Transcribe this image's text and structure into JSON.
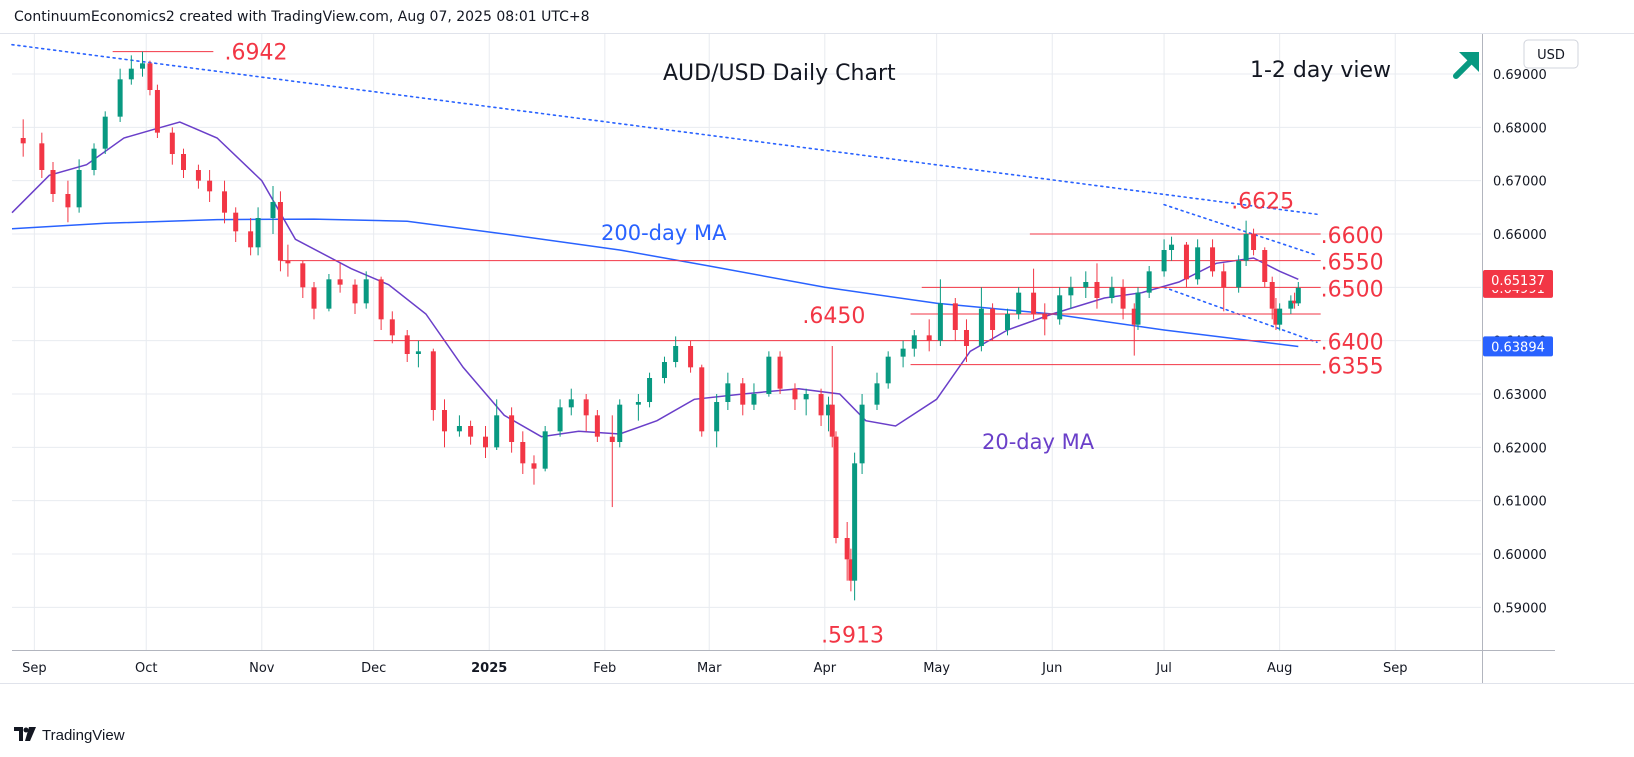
{
  "header": {
    "text": "ContinuumEconomics2 created with TradingView.com, Aug 07, 2025 08:01 UTC+8"
  },
  "brand": {
    "name": "TradingView"
  },
  "chart_data": {
    "type": "candlestick",
    "title": "AUD/USD Daily Chart",
    "view_label": "1-2 day view",
    "view_arrow": "up-right-arrow",
    "currency": "USD",
    "y_range": [
      0.582,
      0.6975
    ],
    "y_ticks": [
      "0.69000",
      "0.68000",
      "0.67000",
      "0.66000",
      "0.65000",
      "0.64000",
      "0.63000",
      "0.62000",
      "0.61000",
      "0.60000",
      "0.59000"
    ],
    "x_ticks": [
      "Sep",
      "Oct",
      "Nov",
      "Dec",
      "2025",
      "Feb",
      "Mar",
      "Apr",
      "May",
      "Jun",
      "Jul",
      "Aug",
      "Sep"
    ],
    "x_tick_dates": [
      "2024-09-01",
      "2024-10-01",
      "2024-11-01",
      "2024-12-01",
      "2025-01-01",
      "2025-02-01",
      "2025-03-01",
      "2025-04-01",
      "2025-05-01",
      "2025-06-01",
      "2025-07-01",
      "2025-08-01",
      "2025-09-01"
    ],
    "x_date_range": [
      "2024-08-26",
      "2025-09-24"
    ],
    "candles": [
      [
        "2024-08-29",
        0.678,
        0.6815,
        0.6745,
        0.677
      ],
      [
        "2024-09-03",
        0.677,
        0.679,
        0.6705,
        0.672
      ],
      [
        "2024-09-06",
        0.672,
        0.6735,
        0.666,
        0.6675
      ],
      [
        "2024-09-10",
        0.6675,
        0.67,
        0.6622,
        0.665
      ],
      [
        "2024-09-13",
        0.665,
        0.674,
        0.664,
        0.672
      ],
      [
        "2024-09-17",
        0.672,
        0.677,
        0.671,
        0.676
      ],
      [
        "2024-09-20",
        0.676,
        0.683,
        0.675,
        0.682
      ],
      [
        "2024-09-24",
        0.682,
        0.691,
        0.681,
        0.689
      ],
      [
        "2024-09-27",
        0.689,
        0.6935,
        0.688,
        0.691
      ],
      [
        "2024-09-30",
        0.691,
        0.6942,
        0.6895,
        0.692
      ],
      [
        "2024-10-02",
        0.692,
        0.6925,
        0.686,
        0.687
      ],
      [
        "2024-10-04",
        0.687,
        0.688,
        0.678,
        0.679
      ],
      [
        "2024-10-08",
        0.679,
        0.68,
        0.673,
        0.675
      ],
      [
        "2024-10-11",
        0.675,
        0.676,
        0.6705,
        0.672
      ],
      [
        "2024-10-15",
        0.672,
        0.673,
        0.6685,
        0.67
      ],
      [
        "2024-10-18",
        0.67,
        0.672,
        0.666,
        0.668
      ],
      [
        "2024-10-22",
        0.668,
        0.67,
        0.662,
        0.664
      ],
      [
        "2024-10-25",
        0.664,
        0.665,
        0.6585,
        0.6605
      ],
      [
        "2024-10-29",
        0.6605,
        0.663,
        0.656,
        0.6575
      ],
      [
        "2024-10-31",
        0.6575,
        0.665,
        0.656,
        0.663
      ],
      [
        "2024-11-04",
        0.663,
        0.669,
        0.66,
        0.666
      ],
      [
        "2024-11-06",
        0.666,
        0.668,
        0.653,
        0.655
      ],
      [
        "2024-11-08",
        0.655,
        0.658,
        0.652,
        0.6545
      ],
      [
        "2024-11-12",
        0.6545,
        0.655,
        0.648,
        0.65
      ],
      [
        "2024-11-15",
        0.65,
        0.651,
        0.644,
        0.646
      ],
      [
        "2024-11-19",
        0.646,
        0.6525,
        0.6455,
        0.6515
      ],
      [
        "2024-11-22",
        0.6515,
        0.6545,
        0.649,
        0.6505
      ],
      [
        "2024-11-26",
        0.6505,
        0.6515,
        0.645,
        0.647
      ],
      [
        "2024-11-29",
        0.647,
        0.653,
        0.646,
        0.6515
      ],
      [
        "2024-12-03",
        0.6515,
        0.652,
        0.642,
        0.644
      ],
      [
        "2024-12-06",
        0.644,
        0.6455,
        0.6395,
        0.641
      ],
      [
        "2024-12-10",
        0.641,
        0.642,
        0.636,
        0.6375
      ],
      [
        "2024-12-13",
        0.6375,
        0.64,
        0.635,
        0.638
      ],
      [
        "2024-12-17",
        0.638,
        0.6385,
        0.625,
        0.627
      ],
      [
        "2024-12-20",
        0.627,
        0.629,
        0.62,
        0.623
      ],
      [
        "2024-12-24",
        0.623,
        0.626,
        0.622,
        0.624
      ],
      [
        "2024-12-27",
        0.624,
        0.625,
        0.6205,
        0.622
      ],
      [
        "2024-12-31",
        0.622,
        0.624,
        0.618,
        0.62
      ],
      [
        "2025-01-03",
        0.62,
        0.629,
        0.6195,
        0.626
      ],
      [
        "2025-01-07",
        0.626,
        0.6275,
        0.619,
        0.621
      ],
      [
        "2025-01-10",
        0.621,
        0.623,
        0.615,
        0.617
      ],
      [
        "2025-01-13",
        0.617,
        0.6185,
        0.613,
        0.616
      ],
      [
        "2025-01-16",
        0.616,
        0.624,
        0.6155,
        0.623
      ],
      [
        "2025-01-20",
        0.623,
        0.629,
        0.622,
        0.6275
      ],
      [
        "2025-01-23",
        0.6275,
        0.631,
        0.626,
        0.629
      ],
      [
        "2025-01-27",
        0.629,
        0.63,
        0.623,
        0.626
      ],
      [
        "2025-01-30",
        0.626,
        0.627,
        0.621,
        0.622
      ],
      [
        "2025-02-03",
        0.622,
        0.626,
        0.6088,
        0.621
      ],
      [
        "2025-02-05",
        0.621,
        0.629,
        0.62,
        0.628
      ],
      [
        "2025-02-10",
        0.628,
        0.63,
        0.625,
        0.6285
      ],
      [
        "2025-02-13",
        0.6285,
        0.634,
        0.6275,
        0.633
      ],
      [
        "2025-02-17",
        0.633,
        0.637,
        0.632,
        0.636
      ],
      [
        "2025-02-20",
        0.636,
        0.6408,
        0.635,
        0.639
      ],
      [
        "2025-02-24",
        0.639,
        0.64,
        0.634,
        0.635
      ],
      [
        "2025-02-27",
        0.635,
        0.6355,
        0.622,
        0.623
      ],
      [
        "2025-03-03",
        0.623,
        0.63,
        0.62,
        0.6285
      ],
      [
        "2025-03-06",
        0.6285,
        0.634,
        0.627,
        0.632
      ],
      [
        "2025-03-10",
        0.632,
        0.633,
        0.626,
        0.628
      ],
      [
        "2025-03-13",
        0.628,
        0.632,
        0.627,
        0.63
      ],
      [
        "2025-03-17",
        0.63,
        0.638,
        0.6295,
        0.637
      ],
      [
        "2025-03-20",
        0.637,
        0.638,
        0.63,
        0.631
      ],
      [
        "2025-03-24",
        0.631,
        0.632,
        0.627,
        0.629
      ],
      [
        "2025-03-27",
        0.629,
        0.631,
        0.626,
        0.63
      ],
      [
        "2025-03-31",
        0.63,
        0.631,
        0.624,
        0.626
      ],
      [
        "2025-04-02",
        0.626,
        0.6295,
        0.623,
        0.628
      ],
      [
        "2025-04-03",
        0.628,
        0.639,
        0.62,
        0.622
      ],
      [
        "2025-04-04",
        0.622,
        0.623,
        0.602,
        0.603
      ],
      [
        "2025-04-07",
        0.603,
        0.606,
        0.595,
        0.599
      ],
      [
        "2025-04-08",
        0.599,
        0.601,
        0.593,
        0.595
      ],
      [
        "2025-04-09",
        0.595,
        0.619,
        0.5913,
        0.617
      ],
      [
        "2025-04-11",
        0.617,
        0.63,
        0.615,
        0.628
      ],
      [
        "2025-04-15",
        0.628,
        0.634,
        0.627,
        0.632
      ],
      [
        "2025-04-18",
        0.632,
        0.638,
        0.631,
        0.637
      ],
      [
        "2025-04-22",
        0.637,
        0.64,
        0.635,
        0.6385
      ],
      [
        "2025-04-25",
        0.6385,
        0.642,
        0.637,
        0.641
      ],
      [
        "2025-04-29",
        0.641,
        0.644,
        0.638,
        0.64
      ],
      [
        "2025-05-02",
        0.64,
        0.6515,
        0.639,
        0.647
      ],
      [
        "2025-05-06",
        0.647,
        0.648,
        0.64,
        0.642
      ],
      [
        "2025-05-09",
        0.642,
        0.644,
        0.636,
        0.639
      ],
      [
        "2025-05-13",
        0.639,
        0.65,
        0.638,
        0.646
      ],
      [
        "2025-05-16",
        0.646,
        0.647,
        0.64,
        0.642
      ],
      [
        "2025-05-20",
        0.642,
        0.646,
        0.641,
        0.645
      ],
      [
        "2025-05-23",
        0.645,
        0.65,
        0.644,
        0.649
      ],
      [
        "2025-05-27",
        0.649,
        0.6535,
        0.644,
        0.645
      ],
      [
        "2025-05-30",
        0.645,
        0.647,
        0.641,
        0.644
      ],
      [
        "2025-06-03",
        0.644,
        0.65,
        0.643,
        0.6485
      ],
      [
        "2025-06-06",
        0.6485,
        0.652,
        0.646,
        0.65
      ],
      [
        "2025-06-10",
        0.65,
        0.653,
        0.648,
        0.651
      ],
      [
        "2025-06-13",
        0.651,
        0.6545,
        0.646,
        0.648
      ],
      [
        "2025-06-17",
        0.648,
        0.652,
        0.647,
        0.65
      ],
      [
        "2025-06-20",
        0.65,
        0.6515,
        0.644,
        0.646
      ],
      [
        "2025-06-23",
        0.646,
        0.647,
        0.6372,
        0.643
      ],
      [
        "2025-06-24",
        0.643,
        0.65,
        0.642,
        0.649
      ],
      [
        "2025-06-27",
        0.649,
        0.654,
        0.648,
        0.653
      ],
      [
        "2025-07-01",
        0.653,
        0.659,
        0.652,
        0.657
      ],
      [
        "2025-07-03",
        0.657,
        0.6595,
        0.655,
        0.658
      ],
      [
        "2025-07-07",
        0.658,
        0.6585,
        0.65,
        0.6515
      ],
      [
        "2025-07-10",
        0.6515,
        0.659,
        0.6505,
        0.6575
      ],
      [
        "2025-07-14",
        0.6575,
        0.659,
        0.652,
        0.653
      ],
      [
        "2025-07-17",
        0.653,
        0.6545,
        0.6455,
        0.65
      ],
      [
        "2025-07-21",
        0.65,
        0.656,
        0.649,
        0.655
      ],
      [
        "2025-07-23",
        0.655,
        0.6625,
        0.654,
        0.66
      ],
      [
        "2025-07-25",
        0.66,
        0.661,
        0.656,
        0.657
      ],
      [
        "2025-07-28",
        0.657,
        0.6575,
        0.65,
        0.651
      ],
      [
        "2025-07-30",
        0.651,
        0.652,
        0.644,
        0.646
      ],
      [
        "2025-07-31",
        0.646,
        0.648,
        0.642,
        0.643
      ],
      [
        "2025-08-01",
        0.643,
        0.647,
        0.6419,
        0.646
      ],
      [
        "2025-08-04",
        0.646,
        0.6485,
        0.645,
        0.6475
      ],
      [
        "2025-08-05",
        0.6475,
        0.649,
        0.646,
        0.647
      ],
      [
        "2025-08-06",
        0.647,
        0.651,
        0.6465,
        0.6499
      ]
    ],
    "ma20": {
      "name": "20-day MA",
      "color": "#6a3fc9",
      "points": [
        [
          "2024-08-26",
          0.664
        ],
        [
          "2024-09-05",
          0.671
        ],
        [
          "2024-09-15",
          0.673
        ],
        [
          "2024-09-25",
          0.678
        ],
        [
          "2024-10-05",
          0.68
        ],
        [
          "2024-10-10",
          0.681
        ],
        [
          "2024-10-20",
          0.678
        ],
        [
          "2024-11-01",
          0.67
        ],
        [
          "2024-11-10",
          0.659
        ],
        [
          "2024-11-25",
          0.6535
        ],
        [
          "2024-12-05",
          0.6505
        ],
        [
          "2024-12-15",
          0.645
        ],
        [
          "2024-12-25",
          0.635
        ],
        [
          "2025-01-05",
          0.626
        ],
        [
          "2025-01-15",
          0.622
        ],
        [
          "2025-01-25",
          0.623
        ],
        [
          "2025-02-05",
          0.6225
        ],
        [
          "2025-02-15",
          0.625
        ],
        [
          "2025-02-25",
          0.629
        ],
        [
          "2025-03-10",
          0.63
        ],
        [
          "2025-03-25",
          0.631
        ],
        [
          "2025-04-05",
          0.63
        ],
        [
          "2025-04-12",
          0.625
        ],
        [
          "2025-04-20",
          0.624
        ],
        [
          "2025-05-01",
          0.629
        ],
        [
          "2025-05-10",
          0.638
        ],
        [
          "2025-05-20",
          0.642
        ],
        [
          "2025-06-01",
          0.645
        ],
        [
          "2025-06-15",
          0.648
        ],
        [
          "2025-06-25",
          0.649
        ],
        [
          "2025-07-05",
          0.651
        ],
        [
          "2025-07-15",
          0.6545
        ],
        [
          "2025-07-25",
          0.6555
        ],
        [
          "2025-08-01",
          0.653
        ],
        [
          "2025-08-06",
          0.6515
        ]
      ]
    },
    "ma200": {
      "name": "200-day MA",
      "color": "#2962ff",
      "points": [
        [
          "2024-08-26",
          0.661
        ],
        [
          "2024-09-20",
          0.662
        ],
        [
          "2024-10-20",
          0.6627
        ],
        [
          "2024-11-15",
          0.6628
        ],
        [
          "2024-12-10",
          0.6624
        ],
        [
          "2025-01-05",
          0.66
        ],
        [
          "2025-02-05",
          0.657
        ],
        [
          "2025-03-01",
          0.654
        ],
        [
          "2025-04-01",
          0.65
        ],
        [
          "2025-05-01",
          0.647
        ],
        [
          "2025-06-01",
          0.645
        ],
        [
          "2025-07-01",
          0.642
        ],
        [
          "2025-08-06",
          0.6389
        ]
      ]
    },
    "dotted_lines": [
      {
        "from": [
          "2024-08-26",
          0.6955
        ],
        "to": [
          "2025-08-11",
          0.6637
        ]
      },
      {
        "from": [
          "2025-07-01",
          0.6655
        ],
        "to": [
          "2025-08-11",
          0.656
        ]
      },
      {
        "from": [
          "2025-07-01",
          0.65
        ],
        "to": [
          "2025-08-11",
          0.6397
        ]
      }
    ],
    "levels": [
      {
        "label": ".6942",
        "value": 0.6942,
        "from": "2024-09-22",
        "to": "2024-10-19",
        "text_at": "2024-10-22"
      },
      {
        "label": ".6625",
        "value": 0.6625,
        "from": null,
        "to": null,
        "text_at": "2025-07-19"
      },
      {
        "label": ".6600",
        "value": 0.66,
        "from": "2025-05-26",
        "to": "2025-08-12",
        "text_at": "2025-08-12"
      },
      {
        "label": ".6550",
        "value": 0.655,
        "from": "2024-11-06",
        "to": "2025-08-12",
        "text_at": "2025-08-12"
      },
      {
        "label": ".6500",
        "value": 0.65,
        "from": "2025-04-27",
        "to": "2025-08-12",
        "text_at": "2025-08-12"
      },
      {
        "label": ".6450",
        "value": 0.645,
        "from": "2025-04-24",
        "to": "2025-08-12",
        "text_at": "2025-03-26"
      },
      {
        "label": ".6400",
        "value": 0.64,
        "from": "2024-12-01",
        "to": "2025-08-12",
        "text_at": "2025-08-12"
      },
      {
        "label": ".6355",
        "value": 0.6355,
        "from": "2025-04-24",
        "to": "2025-08-12",
        "text_at": "2025-08-12"
      },
      {
        "label": ".5913",
        "value": 0.5913,
        "from": null,
        "to": null,
        "text_at": "2025-03-31"
      }
    ],
    "price_tags": [
      {
        "text": "0.64991",
        "value": 0.64991,
        "color": "#f23645"
      },
      {
        "text": "0.63894",
        "value": 0.63894,
        "color": "#2962ff"
      },
      {
        "text": "0.65137",
        "value": 0.65137,
        "color": "#f23645"
      }
    ],
    "colors": {
      "up": "#089981",
      "down": "#f23645",
      "level": "#f23645",
      "annotation": "#f23645",
      "grid": "#e8ebf0"
    }
  }
}
